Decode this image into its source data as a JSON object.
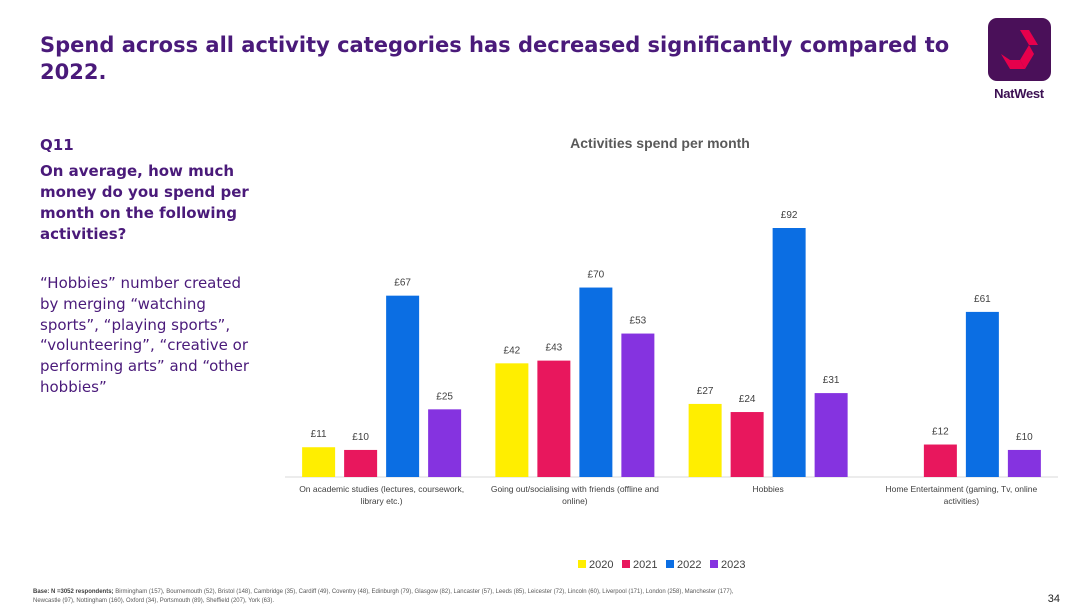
{
  "slide": {
    "title": "Spend across all activity categories has decreased significantly compared to 2022.",
    "page_number": "34"
  },
  "logo": {
    "name": "NatWest",
    "color": "#4a1059",
    "accent": "#e6004c"
  },
  "question": {
    "number": "Q11",
    "text": "On average, how much money do you spend per month on the following activities?",
    "note": "“Hobbies” number created by merging “watching sports”, “playing sports”, “volunteering”, “creative or performing arts” and “other hobbies”"
  },
  "base": {
    "label": "Base: N =3052 respondents;",
    "text": " Birmingham (157),  Bournemouth (52), Bristol (148), Cambridge (35), Cardiff (49), Coventry (48),  Edinburgh (79), Glasgow (82), Lancaster (57), Leeds (85), Leicester (72), Lincoln (60), Liverpool (171), London (258), Manchester (177), Newcastle (97), Nottingham (160), Oxford (34), Portsmouth (89), Sheffield (207), York (63)."
  },
  "chart_data": {
    "type": "bar",
    "title": "Activities spend per month",
    "categories": [
      [
        "On academic studies (lectures, coursework,",
        "library etc.)"
      ],
      [
        "Going out/socialising with friends (offline and",
        "online)"
      ],
      [
        "Hobbies"
      ],
      [
        "Home Entertainment (gaming, Tv, online",
        "activities)"
      ]
    ],
    "series": [
      {
        "name": "2020",
        "color": "#ffee00",
        "values": [
          11,
          42,
          27,
          null
        ],
        "labels": [
          "£11",
          "£42",
          "£27",
          ""
        ]
      },
      {
        "name": "2021",
        "color": "#e8175d",
        "values": [
          10,
          43,
          24,
          12
        ],
        "labels": [
          "£10",
          "£43",
          "£24",
          "£12"
        ]
      },
      {
        "name": "2022",
        "color": "#0b6ee3",
        "values": [
          67,
          70,
          92,
          61
        ],
        "labels": [
          "£67",
          "£70",
          "£92",
          "£61"
        ]
      },
      {
        "name": "2023",
        "color": "#8533e0",
        "values": [
          25,
          53,
          31,
          10
        ],
        "labels": [
          "£25",
          "£53",
          "£31",
          "£10"
        ]
      }
    ],
    "ylim": [
      0,
      92
    ],
    "grid": false,
    "legend": "bottom-center"
  }
}
